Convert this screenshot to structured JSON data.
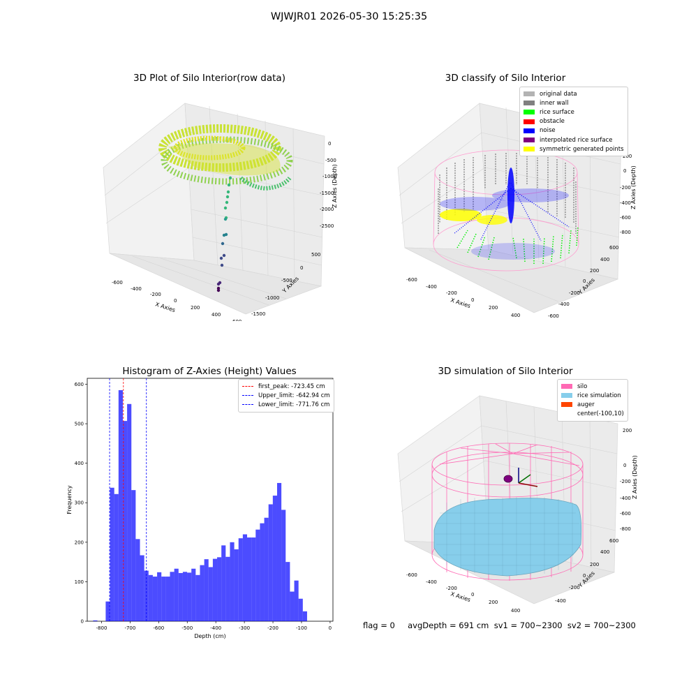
{
  "suptitle": "WJWJR01 2026-05-30 15:25:35",
  "colors": {
    "histogram_bar": "#0000ff",
    "first_peak_line": "#ff0000",
    "limit_lines": "#0000ff",
    "silo_wire": "#ff69b4",
    "rice_surface": "#87ceeb"
  },
  "panels": {
    "raw": {
      "title": "3D Plot of Silo Interior(row data)",
      "xlabel": "X Axies",
      "ylabel": "Y Axies",
      "zlabel": "Z Axies (Depth)",
      "xticks": [
        "-600",
        "-400",
        "-200",
        "0",
        "200",
        "400",
        "600"
      ],
      "yticks": [
        "500",
        "0",
        "-500",
        "-1000",
        "-1500"
      ],
      "zticks": [
        "0",
        "-500",
        "-1000",
        "-1500",
        "-2000",
        "-2500"
      ]
    },
    "classify": {
      "title": "3D classify of Silo Interior",
      "xlabel": "X Axies",
      "ylabel": "Y Axies",
      "zlabel": "Z Axies (Depth)",
      "xticks": [
        "-600",
        "-400",
        "-200",
        "0",
        "200",
        "400"
      ],
      "yticks": [
        "600",
        "400",
        "200",
        "0",
        "-200",
        "-400",
        "-600"
      ],
      "zticks": [
        "200",
        "0",
        "-200",
        "-400",
        "-600",
        "-800"
      ],
      "legend": [
        {
          "label": "original data",
          "color": "#b3b3b3"
        },
        {
          "label": "inner wall",
          "color": "#808080"
        },
        {
          "label": "rice surface",
          "color": "#00ff00"
        },
        {
          "label": "obstacle",
          "color": "#ff0000"
        },
        {
          "label": "noise",
          "color": "#0000ff"
        },
        {
          "label": "interpolated rice surface",
          "color": "#800080"
        },
        {
          "label": "symmetric generated points",
          "color": "#ffff00"
        }
      ]
    },
    "simulation": {
      "title": "3D simulation of Silo Interior",
      "xlabel": "X Axies",
      "ylabel": "Y Axies",
      "zlabel": "Z Axies (Depth)",
      "xticks": [
        "-600",
        "-400",
        "-200",
        "0",
        "200",
        "400"
      ],
      "yticks": [
        "600",
        "400",
        "200",
        "0",
        "-200",
        "-400"
      ],
      "zticks": [
        "200",
        "0",
        "-200",
        "-400",
        "-600",
        "-800"
      ],
      "legend": [
        {
          "label": "silo",
          "color": "#ff69b4"
        },
        {
          "label": "rice simulation",
          "color": "#87ceeb"
        },
        {
          "label": "auger",
          "color": "#ff4500"
        },
        {
          "label": "center(-100,10)",
          "color": "#ffffff"
        }
      ]
    }
  },
  "footer": "flag = 0     avgDepth = 691 cm  sv1 = 700~2300  sv2 = 700~2300",
  "chart_data": {
    "type": "bar",
    "title": "Histogram of Z-Axies (Height) Values",
    "xlabel": "Depth (cm)",
    "ylabel": "Frequency",
    "xlim": [
      -850,
      10
    ],
    "ylim": [
      0,
      615
    ],
    "xticks": [
      -800,
      -700,
      -600,
      -500,
      -400,
      -300,
      -200,
      -100,
      0
    ],
    "yticks": [
      0,
      100,
      200,
      300,
      400,
      500,
      600
    ],
    "bin_width": 15,
    "bins": [
      {
        "x": -822,
        "count": 2
      },
      {
        "x": -778,
        "count": 50
      },
      {
        "x": -763,
        "count": 338
      },
      {
        "x": -748,
        "count": 322
      },
      {
        "x": -733,
        "count": 585
      },
      {
        "x": -718,
        "count": 507
      },
      {
        "x": -703,
        "count": 550
      },
      {
        "x": -688,
        "count": 332
      },
      {
        "x": -673,
        "count": 208
      },
      {
        "x": -658,
        "count": 167
      },
      {
        "x": -643,
        "count": 128
      },
      {
        "x": -628,
        "count": 117
      },
      {
        "x": -613,
        "count": 113
      },
      {
        "x": -598,
        "count": 124
      },
      {
        "x": -583,
        "count": 113
      },
      {
        "x": -568,
        "count": 113
      },
      {
        "x": -553,
        "count": 125
      },
      {
        "x": -538,
        "count": 133
      },
      {
        "x": -523,
        "count": 122
      },
      {
        "x": -508,
        "count": 125
      },
      {
        "x": -493,
        "count": 123
      },
      {
        "x": -478,
        "count": 133
      },
      {
        "x": -463,
        "count": 117
      },
      {
        "x": -448,
        "count": 142
      },
      {
        "x": -433,
        "count": 157
      },
      {
        "x": -418,
        "count": 137
      },
      {
        "x": -403,
        "count": 158
      },
      {
        "x": -388,
        "count": 162
      },
      {
        "x": -373,
        "count": 192
      },
      {
        "x": -358,
        "count": 163
      },
      {
        "x": -343,
        "count": 200
      },
      {
        "x": -328,
        "count": 182
      },
      {
        "x": -313,
        "count": 210
      },
      {
        "x": -298,
        "count": 220
      },
      {
        "x": -283,
        "count": 212
      },
      {
        "x": -268,
        "count": 212
      },
      {
        "x": -253,
        "count": 232
      },
      {
        "x": -238,
        "count": 248
      },
      {
        "x": -223,
        "count": 262
      },
      {
        "x": -208,
        "count": 296
      },
      {
        "x": -193,
        "count": 318
      },
      {
        "x": -178,
        "count": 350
      },
      {
        "x": -163,
        "count": 282
      },
      {
        "x": -148,
        "count": 150
      },
      {
        "x": -133,
        "count": 75
      },
      {
        "x": -118,
        "count": 103
      },
      {
        "x": -103,
        "count": 57
      },
      {
        "x": -88,
        "count": 25
      }
    ],
    "vlines": [
      {
        "name": "first_peak: -723.45 cm",
        "x": -723.45,
        "color": "#ff0000"
      },
      {
        "name": "Upper_limit: -642.94 cm",
        "x": -642.94,
        "color": "#0000ff"
      },
      {
        "name": "Lower_limit: -771.76 cm",
        "x": -771.76,
        "color": "#0000ff"
      }
    ],
    "legend_position": "top-right"
  }
}
